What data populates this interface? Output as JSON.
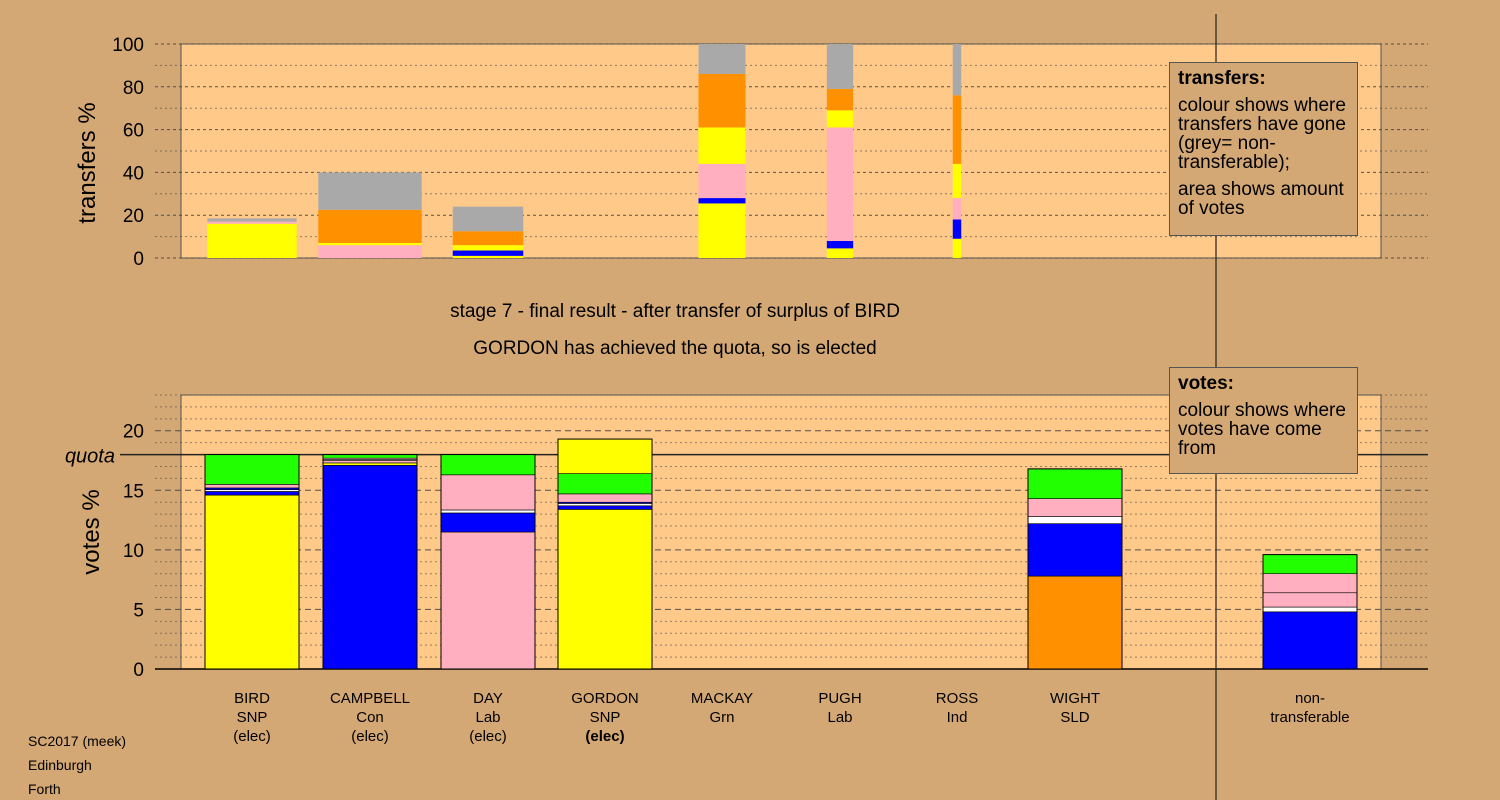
{
  "colors": {
    "background": "#d4a874",
    "plot_background": "#ffc98a",
    "snp": "#ffff00",
    "con": "#0000ff",
    "lab": "#ffafbf",
    "grn": "#22ff00",
    "sld": "#ff9100",
    "ind": "#ffffff",
    "non_transferable": "#a9a9a9"
  },
  "caption": {
    "line1": "stage 7 - final result - after transfer of surplus of BIRD",
    "line2": "GORDON has achieved the quota, so is elected"
  },
  "legend_transfers": {
    "title": "transfers:",
    "text1": "colour shows where transfers have gone (grey= non-transferable);",
    "text2": "area shows amount of votes"
  },
  "legend_votes": {
    "title": "votes:",
    "text1": "colour shows where votes have come from"
  },
  "meta": {
    "line1": "SC2017 (meek)",
    "line2": "Edinburgh",
    "line3": "Forth"
  },
  "candidates": [
    {
      "name": "BIRD",
      "party": "SNP",
      "status": "(elec)",
      "status_bold": false
    },
    {
      "name": "CAMPBELL",
      "party": "Con",
      "status": "(elec)",
      "status_bold": false
    },
    {
      "name": "DAY",
      "party": "Lab",
      "status": "(elec)",
      "status_bold": false
    },
    {
      "name": "GORDON",
      "party": "SNP",
      "status": "(elec)",
      "status_bold": true
    },
    {
      "name": "MACKAY",
      "party": "Grn",
      "status": "",
      "status_bold": false
    },
    {
      "name": "PUGH",
      "party": "Lab",
      "status": "",
      "status_bold": false
    },
    {
      "name": "ROSS",
      "party": "Ind",
      "status": "",
      "status_bold": false
    },
    {
      "name": "WIGHT",
      "party": "SLD",
      "status": "",
      "status_bold": false
    }
  ],
  "non_transferable_label": {
    "line1": "non-",
    "line2": "transferable"
  },
  "chart_data": [
    {
      "type": "bar",
      "ylabel": "transfers %",
      "ylim": [
        0,
        100
      ],
      "yticks": [
        0,
        20,
        40,
        60,
        80,
        100
      ],
      "grid": true,
      "legend": "right",
      "note": "bar width shows amount of votes transferred",
      "bars": [
        {
          "candidate": "BIRD",
          "relative_width": 0.95,
          "segments": [
            {
              "party": "snp",
              "value": 16
            },
            {
              "party": "lab",
              "value": 1
            },
            {
              "party": "non_transferable",
              "value": 1.5
            }
          ]
        },
        {
          "candidate": "CAMPBELL",
          "relative_width": 1.1,
          "segments": [
            {
              "party": "lab",
              "value": 6
            },
            {
              "party": "snp",
              "value": 1
            },
            {
              "party": "sld",
              "value": 15.5
            },
            {
              "party": "non_transferable",
              "value": 17.5
            }
          ]
        },
        {
          "candidate": "DAY",
          "relative_width": 0.75,
          "segments": [
            {
              "party": "snp",
              "value": 1
            },
            {
              "party": "con",
              "value": 2.5
            },
            {
              "party": "snp",
              "value": 2.5
            },
            {
              "party": "sld",
              "value": 6.5
            },
            {
              "party": "non_transferable",
              "value": 11.5
            }
          ]
        },
        {
          "candidate": "MACKAY",
          "relative_width": 0.5,
          "segments": [
            {
              "party": "snp",
              "value": 25.5
            },
            {
              "party": "con",
              "value": 2.5
            },
            {
              "party": "lab",
              "value": 16
            },
            {
              "party": "snp",
              "value": 17
            },
            {
              "party": "sld",
              "value": 25
            },
            {
              "party": "non_transferable",
              "value": 14
            }
          ]
        },
        {
          "candidate": "PUGH",
          "relative_width": 0.28,
          "segments": [
            {
              "party": "snp",
              "value": 4.5
            },
            {
              "party": "con",
              "value": 3.5
            },
            {
              "party": "lab",
              "value": 53
            },
            {
              "party": "snp",
              "value": 8
            },
            {
              "party": "sld",
              "value": 10
            },
            {
              "party": "non_transferable",
              "value": 21
            }
          ]
        },
        {
          "candidate": "ROSS",
          "relative_width": 0.09,
          "segments": [
            {
              "party": "snp",
              "value": 9
            },
            {
              "party": "con",
              "value": 9
            },
            {
              "party": "lab",
              "value": 10
            },
            {
              "party": "snp",
              "value": 16
            },
            {
              "party": "sld",
              "value": 32
            },
            {
              "party": "non_transferable",
              "value": 24
            }
          ]
        }
      ]
    },
    {
      "type": "bar",
      "ylabel": "votes %",
      "ylim": [
        0,
        23
      ],
      "yticks": [
        0,
        5,
        10,
        15,
        20
      ],
      "quota": 18.0,
      "quota_label": "quota",
      "grid": true,
      "legend": "right",
      "bars": [
        {
          "candidate": "BIRD",
          "segments": [
            {
              "party": "snp",
              "value": 14.6
            },
            {
              "party": "con",
              "value": 0.3
            },
            {
              "party": "ind",
              "value": 0.15
            },
            {
              "party": "con",
              "value": 0.15
            },
            {
              "party": "lab",
              "value": 0.3
            },
            {
              "party": "grn",
              "value": 2.5
            }
          ]
        },
        {
          "candidate": "CAMPBELL",
          "segments": [
            {
              "party": "con",
              "value": 17.1
            },
            {
              "party": "snp",
              "value": 0.2
            },
            {
              "party": "lab",
              "value": 0.2
            },
            {
              "party": "ind",
              "value": 0.1
            },
            {
              "party": "lab",
              "value": 0.1
            },
            {
              "party": "grn",
              "value": 0.3
            }
          ]
        },
        {
          "candidate": "DAY",
          "segments": [
            {
              "party": "lab",
              "value": 11.5
            },
            {
              "party": "con",
              "value": 1.6
            },
            {
              "party": "ind",
              "value": 0.25
            },
            {
              "party": "lab",
              "value": 2.95
            },
            {
              "party": "grn",
              "value": 1.7
            }
          ]
        },
        {
          "candidate": "GORDON",
          "segments": [
            {
              "party": "snp",
              "value": 13.4
            },
            {
              "party": "con",
              "value": 0.3
            },
            {
              "party": "ind",
              "value": 0.2
            },
            {
              "party": "con",
              "value": 0.1
            },
            {
              "party": "lab",
              "value": 0.7
            },
            {
              "party": "grn",
              "value": 1.7
            },
            {
              "party": "snp",
              "value": 2.9
            }
          ]
        },
        {
          "candidate": "MACKAY",
          "segments": []
        },
        {
          "candidate": "PUGH",
          "segments": []
        },
        {
          "candidate": "ROSS",
          "segments": []
        },
        {
          "candidate": "WIGHT",
          "segments": [
            {
              "party": "sld",
              "value": 7.8
            },
            {
              "party": "con",
              "value": 4.4
            },
            {
              "party": "ind",
              "value": 0.6
            },
            {
              "party": "lab",
              "value": 1.5
            },
            {
              "party": "grn",
              "value": 2.5
            }
          ]
        },
        {
          "candidate": "non-transferable",
          "segments": [
            {
              "party": "con",
              "value": 4.8
            },
            {
              "party": "ind",
              "value": 0.4
            },
            {
              "party": "lab",
              "value": 1.2
            },
            {
              "party": "lab",
              "value": 1.6
            },
            {
              "party": "grn",
              "value": 1.6
            }
          ]
        }
      ]
    }
  ]
}
